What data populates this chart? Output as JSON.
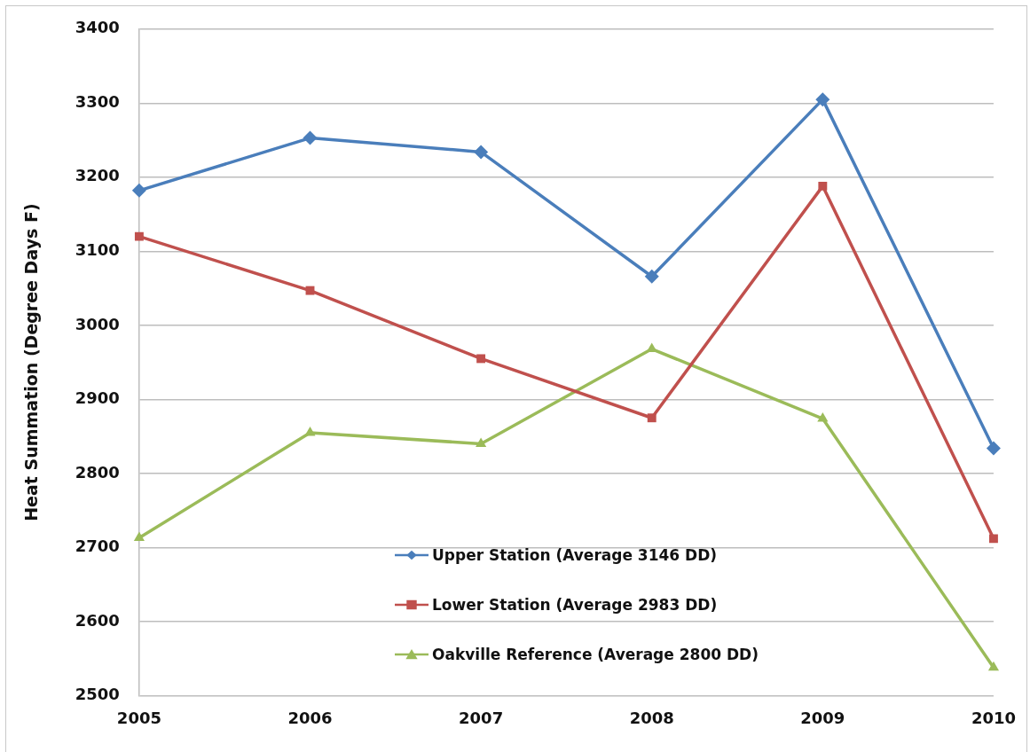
{
  "chart_data": {
    "type": "line",
    "ylabel": "Heat Summation (Degree Days F)",
    "categories": [
      "2005",
      "2006",
      "2007",
      "2008",
      "2009",
      "2010"
    ],
    "ylim": [
      2500,
      3400
    ],
    "yticks": [
      2500,
      2600,
      2700,
      2800,
      2900,
      3000,
      3100,
      3200,
      3300,
      3400
    ],
    "grid": "y",
    "legend": "bottom",
    "series": [
      {
        "name": "Upper Station (Average 3146 DD)",
        "color": "#4a7ebb",
        "marker": "diamond",
        "values": [
          3182,
          3253,
          3234,
          3066,
          3305,
          2834
        ]
      },
      {
        "name": "Lower Station (Average 2983 DD)",
        "color": "#c0504d",
        "marker": "square",
        "values": [
          3120,
          3047,
          2955,
          2875,
          3188,
          2712
        ]
      },
      {
        "name": "Oakville Reference (Average 2800 DD)",
        "color": "#9bbb59",
        "marker": "triangle",
        "values": [
          2713,
          2855,
          2840,
          2968,
          2874,
          2538
        ]
      }
    ]
  }
}
